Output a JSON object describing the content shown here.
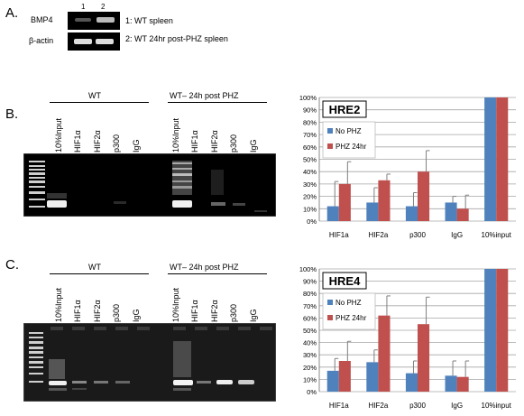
{
  "panel_a": {
    "letter": "A.",
    "lane_numbers": [
      "1",
      "2"
    ],
    "row_labels": [
      "BMP4",
      "β-actin"
    ],
    "legend": [
      "1: WT spleen",
      "2: WT 24hr post-PHZ spleen"
    ]
  },
  "panel_b": {
    "letter": "B.",
    "group_labels": [
      "WT",
      "WT– 24h post PHZ"
    ],
    "lanes_wt": [
      "10%Input",
      "HIF1α",
      "HIF2α",
      "p300",
      "IgG"
    ],
    "lanes_phz": [
      "10%Input",
      "HIF1α",
      "HIF2α",
      "p300",
      "IgG"
    ]
  },
  "panel_c": {
    "letter": "C.",
    "group_labels": [
      "WT",
      "WT– 24h post PHZ"
    ],
    "lanes_wt": [
      "10%Input",
      "HIF1α",
      "HIF2α",
      "p300",
      "IgG"
    ],
    "lanes_phz": [
      "10%Input",
      "HIF1α",
      "HIF2α",
      "p300",
      "IgG"
    ]
  },
  "colors": {
    "no_phz": "#4f81bd",
    "phz_24hr": "#c0504d",
    "error": "#7f7f7f"
  },
  "chart_data": [
    {
      "type": "bar",
      "title": "HRE2",
      "categories": [
        "HIF1a",
        "HIF2a",
        "p300",
        "IgG",
        "10%input"
      ],
      "series": [
        {
          "name": "No PHZ",
          "values": [
            12,
            15,
            12,
            15,
            100
          ],
          "errors": [
            20,
            12,
            11,
            5,
            0
          ]
        },
        {
          "name": "PHZ 24hr",
          "values": [
            30,
            33,
            40,
            10,
            100
          ],
          "errors": [
            18,
            5,
            17,
            11,
            0
          ]
        }
      ],
      "ylim": [
        0,
        100
      ],
      "yticks": [
        "0%",
        "10%",
        "20%",
        "30%",
        "40%",
        "50%",
        "60%",
        "70%",
        "80%",
        "90%",
        "100%"
      ],
      "grid": true,
      "legend_position": "top-left"
    },
    {
      "type": "bar",
      "title": "HRE4",
      "categories": [
        "HIF1a",
        "HIF2a",
        "p300",
        "IgG",
        "10%input"
      ],
      "series": [
        {
          "name": "No PHZ",
          "values": [
            17,
            24,
            15,
            13,
            100
          ],
          "errors": [
            10,
            10,
            10,
            12,
            0
          ]
        },
        {
          "name": "PHZ 24hr",
          "values": [
            25,
            62,
            55,
            12,
            100
          ],
          "errors": [
            16,
            16,
            22,
            13,
            0
          ]
        }
      ],
      "ylim": [
        0,
        100
      ],
      "yticks": [
        "0%",
        "10%",
        "20%",
        "30%",
        "40%",
        "50%",
        "60%",
        "70%",
        "80%",
        "90%",
        "100%"
      ],
      "grid": true,
      "legend_position": "top-left"
    }
  ]
}
